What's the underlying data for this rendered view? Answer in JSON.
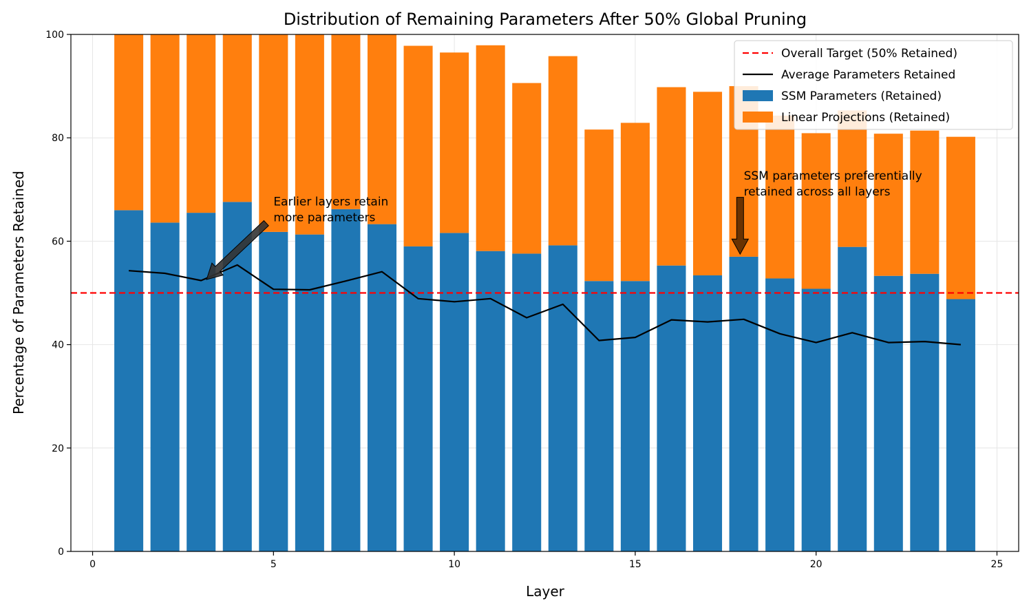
{
  "chart_data": {
    "type": "bar",
    "stacked": true,
    "title": "Distribution of Remaining Parameters After 50% Global Pruning",
    "xlabel": "Layer",
    "ylabel": "Percentage of Parameters Retained",
    "xlim": [
      -0.6,
      25.6
    ],
    "ylim": [
      0,
      100
    ],
    "xticks": [
      0,
      5,
      10,
      15,
      20,
      25
    ],
    "yticks": [
      0,
      20,
      40,
      60,
      80,
      100
    ],
    "grid": true,
    "legend_position": "top-right",
    "x": [
      1,
      2,
      3,
      4,
      5,
      6,
      7,
      8,
      9,
      10,
      11,
      12,
      13,
      14,
      15,
      16,
      17,
      18,
      19,
      20,
      21,
      22,
      23,
      24
    ],
    "series": [
      {
        "name": "SSM Parameters (Retained)",
        "kind": "bar",
        "color": "#1f77b4",
        "values": [
          66.0,
          63.6,
          65.5,
          67.6,
          61.8,
          61.3,
          66.2,
          63.3,
          59.0,
          61.6,
          58.1,
          57.6,
          59.2,
          52.3,
          52.3,
          55.3,
          53.4,
          57.0,
          52.8,
          50.8,
          58.9,
          53.3,
          53.7,
          48.8
        ]
      },
      {
        "name": "Linear Projections (Retained)",
        "kind": "bar",
        "color": "#ff7f0e",
        "values": [
          34.0,
          36.4,
          34.5,
          32.4,
          38.2,
          38.7,
          33.8,
          36.7,
          38.8,
          34.9,
          39.8,
          33.0,
          36.6,
          29.3,
          30.6,
          34.5,
          35.5,
          33.0,
          31.5,
          30.1,
          26.4,
          27.5,
          27.7,
          31.4
        ]
      },
      {
        "name": "Average Parameters Retained",
        "kind": "line",
        "color": "#000000",
        "values": [
          54.3,
          53.8,
          52.4,
          55.4,
          50.7,
          50.6,
          52.3,
          54.1,
          48.9,
          48.3,
          48.9,
          45.2,
          47.8,
          40.8,
          41.4,
          44.8,
          44.4,
          44.9,
          42.1,
          40.4,
          42.3,
          40.4,
          40.6,
          40.0
        ]
      }
    ],
    "reference_line": {
      "name": "Overall Target (50% Retained)",
      "y": 50,
      "color": "#ff0000",
      "style": "dashed"
    },
    "legend": [
      "Overall Target (50% Retained)",
      "Average Parameters Retained",
      "SSM Parameters (Retained)",
      "Linear Projections (Retained)"
    ],
    "annotations": [
      {
        "lines": [
          "Earlier layers retain",
          "more parameters"
        ],
        "text_at": [
          5,
          68
        ],
        "arrow_from": [
          4.8,
          63.5
        ],
        "arrow_to": [
          3.15,
          52.6
        ],
        "arrow_color": "#333333"
      },
      {
        "lines": [
          "SSM parameters preferentially",
          "retained across all layers"
        ],
        "text_at": [
          18,
          73
        ],
        "arrow_from": [
          17.9,
          68.5
        ],
        "arrow_to": [
          17.9,
          57.5
        ],
        "arrow_color": "#5a2a00"
      }
    ]
  }
}
